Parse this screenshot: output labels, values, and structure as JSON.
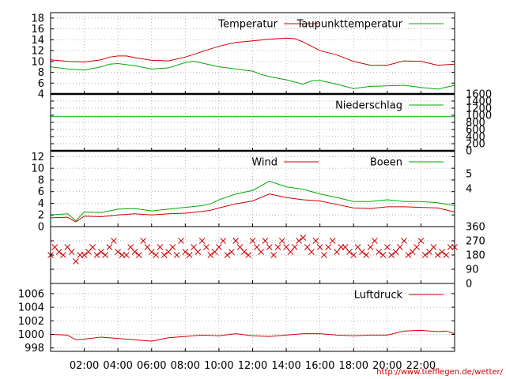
{
  "credit": "http://www.tiefflegen.de/wetter/",
  "x_axis": {
    "unit": "hour",
    "range": [
      0,
      24
    ],
    "tick_hours": [
      2,
      4,
      6,
      8,
      10,
      12,
      14,
      16,
      18,
      20,
      22
    ],
    "tick_labels": [
      "02:00",
      "04:00",
      "06:00",
      "08:00",
      "10:00",
      "12:00",
      "14:00",
      "16:00",
      "18:00",
      "20:00",
      "22:00"
    ]
  },
  "colors": {
    "red": "#cc0000",
    "green": "#00aa00",
    "grid": "#999999",
    "frame": "#000000"
  },
  "chart_data": [
    {
      "type": "line",
      "panel": "temperature",
      "ylim": [
        4,
        19
      ],
      "y_ticks": [
        4,
        6,
        8,
        10,
        12,
        14,
        16,
        18
      ],
      "y_tick_labels": [
        "4",
        "6",
        "8",
        "10",
        "12",
        "14",
        "16",
        "18"
      ],
      "grid": true,
      "legend": "top-right",
      "series": [
        {
          "name": "Temperatur",
          "color": "#cc0000",
          "x": [
            0,
            1,
            2,
            3,
            3.5,
            4,
            4.5,
            5,
            6,
            7,
            8,
            9,
            10,
            11,
            12,
            13,
            14,
            14.5,
            15,
            15.5,
            16,
            17,
            18,
            19,
            20,
            21,
            22,
            23,
            24
          ],
          "y": [
            10.3,
            10.0,
            9.9,
            10.3,
            10.8,
            11.0,
            11.0,
            10.7,
            10.2,
            10.1,
            10.8,
            11.8,
            12.8,
            13.5,
            13.8,
            14.1,
            14.3,
            14.2,
            13.6,
            12.8,
            12.0,
            11.2,
            10.0,
            9.3,
            9.3,
            10.1,
            10.0,
            9.3,
            9.5
          ]
        },
        {
          "name": "Taupunkttemperatur",
          "color": "#00aa00",
          "x": [
            0,
            1,
            2,
            3,
            3.5,
            4,
            5,
            6,
            7,
            8,
            8.5,
            9,
            10,
            11,
            12,
            12.5,
            13,
            14,
            15,
            15.5,
            16,
            17,
            18,
            19,
            20,
            21,
            22,
            23,
            24
          ],
          "y": [
            9.0,
            8.6,
            8.4,
            9.0,
            9.5,
            9.6,
            9.2,
            8.6,
            8.8,
            9.8,
            10.0,
            9.7,
            9.0,
            8.6,
            8.2,
            7.6,
            7.2,
            6.6,
            5.8,
            6.4,
            6.5,
            5.8,
            5.0,
            5.4,
            5.5,
            5.6,
            5.2,
            4.9,
            5.6
          ]
        }
      ]
    },
    {
      "type": "line",
      "panel": "precipitation",
      "ylim": [
        0,
        1600
      ],
      "y_ticks": [
        0,
        200,
        400,
        600,
        800,
        1000,
        1200,
        1400,
        1600
      ],
      "y_tick_labels": [
        "0",
        "200",
        "400",
        "600",
        "800",
        "1000",
        "1200",
        "1400",
        "1600"
      ],
      "y_axis_side": "right",
      "grid": true,
      "legend": "top-right",
      "series": [
        {
          "name": "Niederschlag",
          "color": "#00aa00",
          "x": [
            0,
            24
          ],
          "y": [
            960,
            960
          ]
        }
      ]
    },
    {
      "type": "line",
      "panel": "wind",
      "ylim": [
        0,
        13
      ],
      "y_ticks": [
        0,
        2,
        4,
        6,
        8,
        10,
        12
      ],
      "y_tick_labels": [
        "0",
        "2",
        "4",
        "6",
        "8",
        "10",
        "12"
      ],
      "y2_ticks": [
        4,
        5
      ],
      "y2_tick_labels": [
        "4",
        "5"
      ],
      "grid": true,
      "legend": "top-right",
      "series": [
        {
          "name": "Wind",
          "color": "#cc0000",
          "x": [
            0,
            1,
            1.5,
            2,
            3,
            4,
            5,
            6,
            7,
            8,
            9,
            9.5,
            10,
            11,
            12,
            12.5,
            13,
            14,
            15,
            16,
            17,
            18,
            19,
            20,
            21,
            22,
            23,
            24
          ],
          "y": [
            1.5,
            1.6,
            0.8,
            1.8,
            1.7,
            2.0,
            2.2,
            2.0,
            2.2,
            2.3,
            2.6,
            2.8,
            3.2,
            3.9,
            4.4,
            5.0,
            5.6,
            5.0,
            4.6,
            4.4,
            3.8,
            3.2,
            3.1,
            3.4,
            3.4,
            3.3,
            3.2,
            2.5
          ]
        },
        {
          "name": "Boeen",
          "color": "#00aa00",
          "x": [
            0,
            1,
            1.5,
            2,
            3,
            4,
            5,
            6,
            7,
            8,
            9,
            9.5,
            10,
            11,
            12,
            12.5,
            13,
            14,
            15,
            16,
            17,
            18,
            19,
            20,
            21,
            22,
            23,
            24
          ],
          "y": [
            2.0,
            2.2,
            1.0,
            2.5,
            2.4,
            3.0,
            3.1,
            2.7,
            3.0,
            3.3,
            3.6,
            3.9,
            4.6,
            5.6,
            6.2,
            7.0,
            7.8,
            6.8,
            6.4,
            5.6,
            5.0,
            4.3,
            4.3,
            4.6,
            4.3,
            4.3,
            4.1,
            3.6
          ]
        }
      ]
    },
    {
      "type": "scatter",
      "panel": "wind-direction",
      "ylim": [
        0,
        360
      ],
      "y_ticks": [
        0,
        90,
        180,
        270,
        360
      ],
      "y_tick_labels": [
        "0",
        "90",
        "180",
        "270",
        "360"
      ],
      "y_axis_side": "right",
      "grid": true,
      "marker": "x",
      "series": [
        {
          "color": "#cc0000",
          "x": [
            0.0,
            0.25,
            0.5,
            0.75,
            1.0,
            1.25,
            1.5,
            1.75,
            2.0,
            2.25,
            2.5,
            2.75,
            3.0,
            3.25,
            3.5,
            3.75,
            4.0,
            4.25,
            4.5,
            4.75,
            5.0,
            5.25,
            5.5,
            5.75,
            6.0,
            6.25,
            6.5,
            6.75,
            7.0,
            7.25,
            7.5,
            7.75,
            8.0,
            8.25,
            8.5,
            8.75,
            9.0,
            9.25,
            9.5,
            9.75,
            10.0,
            10.25,
            10.5,
            10.75,
            11.0,
            11.25,
            11.5,
            11.75,
            12.0,
            12.25,
            12.5,
            12.75,
            13.0,
            13.25,
            13.5,
            13.75,
            14.0,
            14.25,
            14.5,
            14.75,
            15.0,
            15.25,
            15.5,
            15.75,
            16.0,
            16.25,
            16.5,
            16.75,
            17.0,
            17.25,
            17.5,
            17.75,
            18.0,
            18.25,
            18.5,
            18.75,
            19.0,
            19.25,
            19.5,
            19.75,
            20.0,
            20.25,
            20.5,
            20.75,
            21.0,
            21.25,
            21.5,
            21.75,
            22.0,
            22.25,
            22.5,
            22.75,
            23.0,
            23.25,
            23.5,
            23.75,
            24.0
          ],
          "y": [
            180,
            230,
            200,
            180,
            230,
            200,
            140,
            180,
            180,
            200,
            230,
            180,
            200,
            180,
            230,
            270,
            200,
            180,
            180,
            230,
            200,
            180,
            270,
            230,
            200,
            180,
            230,
            180,
            200,
            230,
            180,
            270,
            200,
            180,
            230,
            200,
            270,
            230,
            180,
            200,
            230,
            270,
            180,
            200,
            270,
            230,
            200,
            180,
            270,
            230,
            200,
            270,
            230,
            180,
            230,
            270,
            230,
            200,
            230,
            270,
            290,
            230,
            200,
            270,
            230,
            180,
            230,
            270,
            200,
            230,
            230,
            200,
            180,
            230,
            200,
            180,
            230,
            270,
            200,
            180,
            230,
            180,
            200,
            230,
            270,
            180,
            200,
            230,
            270,
            180,
            200,
            230,
            180,
            200,
            180,
            230,
            230
          ]
        }
      ]
    },
    {
      "type": "line",
      "panel": "pressure",
      "ylim": [
        997.5,
        1007.5
      ],
      "y_ticks": [
        998,
        1000,
        1002,
        1004,
        1006
      ],
      "y_tick_labels": [
        "998",
        "1000",
        "1002",
        "1004",
        "1006"
      ],
      "grid": true,
      "legend": "top-right",
      "series": [
        {
          "name": "Luftdruck",
          "color": "#cc0000",
          "x": [
            0,
            1,
            1.5,
            2,
            3,
            4,
            5,
            6,
            7,
            8,
            9,
            10,
            11,
            12,
            13,
            14,
            15,
            16,
            17,
            18,
            19,
            20,
            21,
            22,
            23,
            23.5,
            24
          ],
          "y": [
            1000.0,
            999.9,
            999.2,
            999.3,
            999.6,
            999.4,
            999.2,
            999.0,
            999.5,
            999.7,
            999.9,
            999.8,
            1000.1,
            999.8,
            999.7,
            999.9,
            1000.1,
            1000.1,
            999.9,
            999.8,
            999.9,
            999.9,
            1000.5,
            1000.6,
            1000.4,
            1000.5,
            1000.1
          ]
        }
      ]
    }
  ]
}
